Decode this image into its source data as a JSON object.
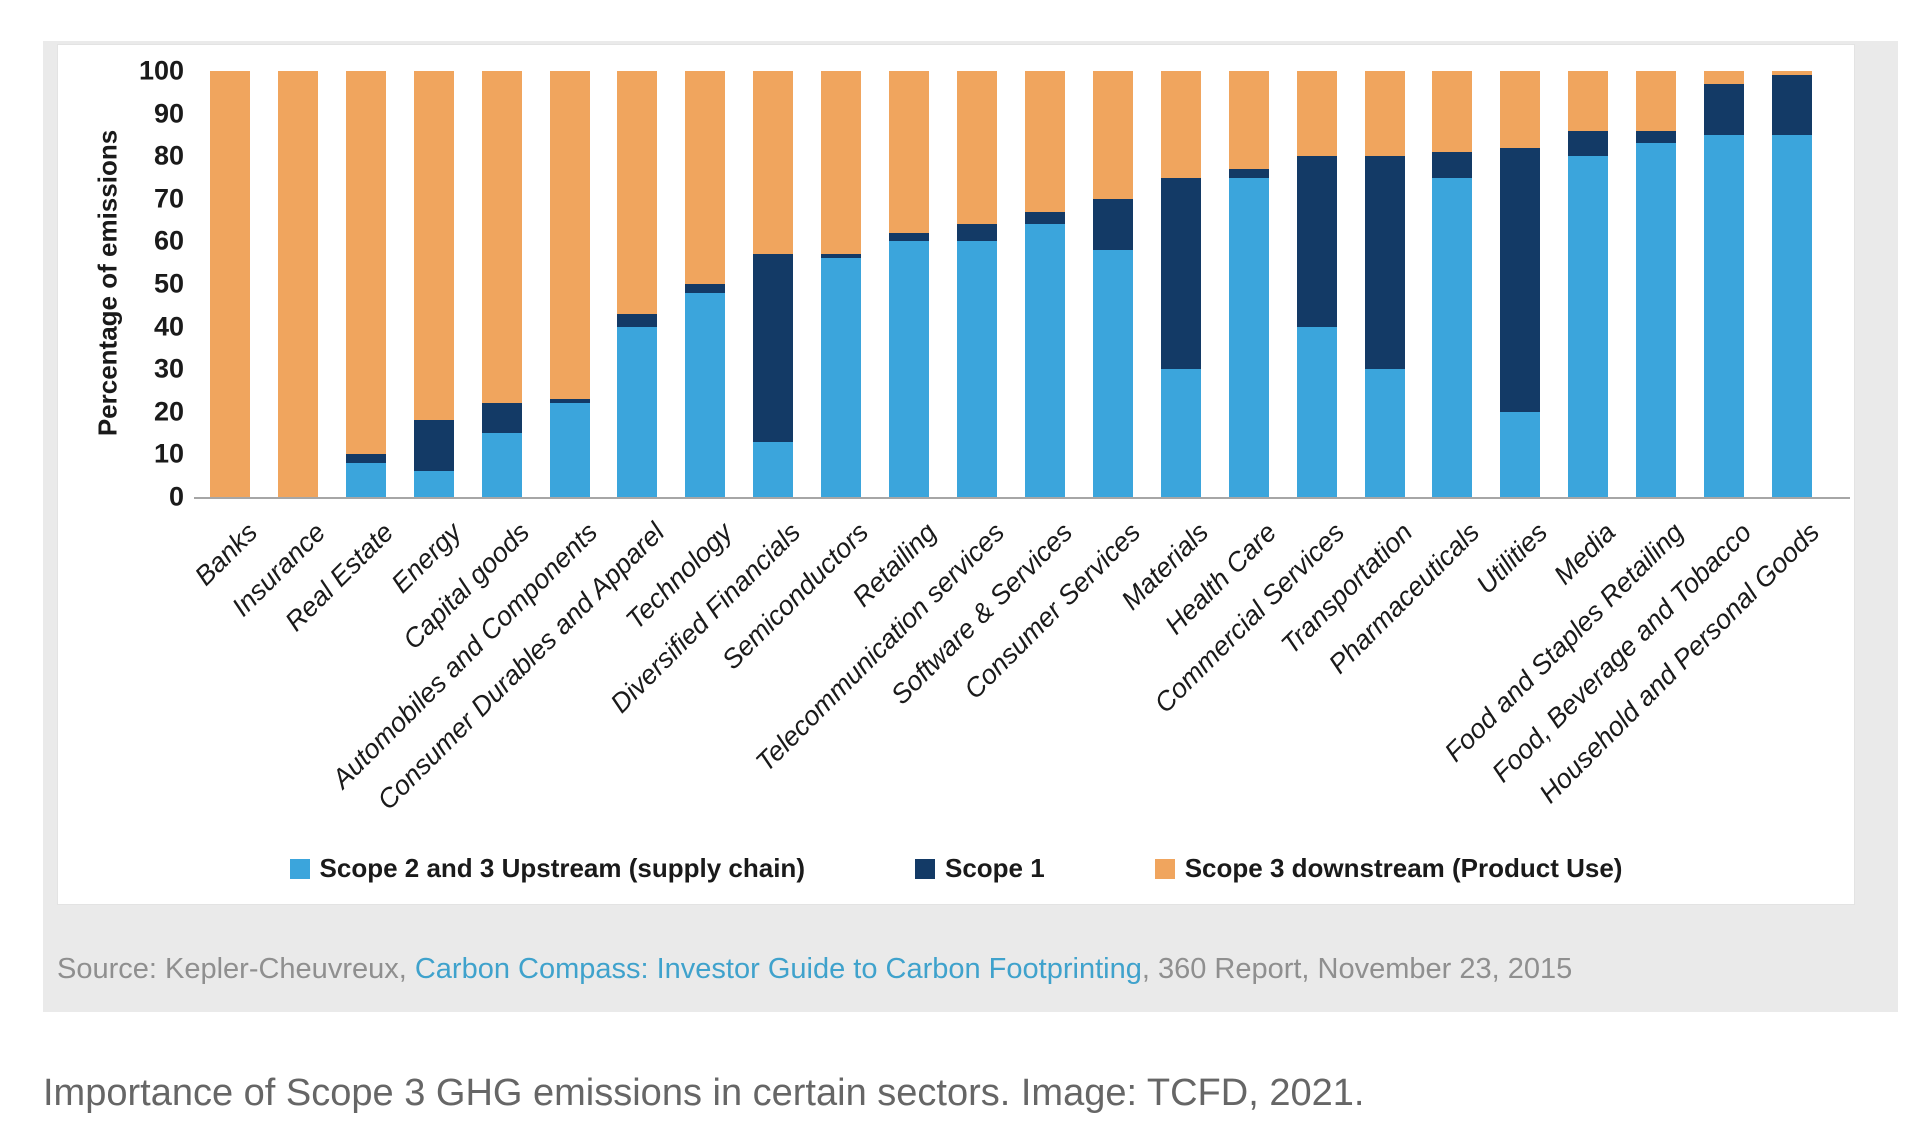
{
  "chart_data": {
    "type": "bar",
    "stacked": true,
    "title": "",
    "xlabel": "",
    "ylabel": "Percentage of emissions",
    "ylim": [
      0,
      100
    ],
    "yticks": [
      0,
      10,
      20,
      30,
      40,
      50,
      60,
      70,
      80,
      90,
      100
    ],
    "grid": false,
    "legend_position": "bottom",
    "categories": [
      "Banks",
      "Insurance",
      "Real Estate",
      "Energy",
      "Capital goods",
      "Automobiles and Components",
      "Consumer Durables and Apparel",
      "Technology",
      "Diversified Financials",
      "Semiconductors",
      "Retailing",
      "Telecommunication services",
      "Software & Services",
      "Consumer Services",
      "Materials",
      "Health Care",
      "Commercial Services",
      "Transportation",
      "Pharmaceuticals",
      "Utilities",
      "Media",
      "Food and Staples Retailing",
      "Food, Beverage and Tobacco",
      "Household and Personal Goods"
    ],
    "series": [
      {
        "name": "Scope 2 and 3 Upstream (supply chain)",
        "color": "#3BA5DC",
        "values": [
          0,
          0,
          8,
          6,
          15,
          22,
          40,
          48,
          13,
          56,
          60,
          60,
          64,
          58,
          30,
          75,
          40,
          30,
          75,
          20,
          80,
          83,
          85,
          85
        ]
      },
      {
        "name": "Scope 1",
        "color": "#133A66",
        "values": [
          0,
          0,
          2,
          12,
          7,
          1,
          3,
          2,
          44,
          1,
          2,
          4,
          3,
          12,
          45,
          2,
          40,
          50,
          6,
          62,
          6,
          3,
          12,
          14
        ]
      },
      {
        "name": "Scope 3 downstream (Product Use)",
        "color": "#F0A55E",
        "values": [
          100,
          100,
          90,
          82,
          78,
          77,
          57,
          50,
          43,
          43,
          38,
          36,
          33,
          30,
          25,
          23,
          20,
          20,
          19,
          18,
          14,
          14,
          3,
          1
        ]
      }
    ]
  },
  "source": {
    "prefix": "Source: Kepler-Cheuvreux, ",
    "link_text": "Carbon Compass: Investor Guide to Carbon Footprinting",
    "suffix": ", 360 Report, November 23, 2015"
  },
  "caption": {
    "text": "Importance of Scope 3 GHG emissions in certain sectors. Image: TCFD, 2021."
  },
  "colors": {
    "frame_bg": "#EAEAEA",
    "panel_bg": "#FFFFFF",
    "axis_line": "#A6A6A6",
    "axis_text": "#1A1A1A",
    "source_text": "#8F8F8F",
    "link_text": "#3FA2CC",
    "caption_text": "#666666"
  }
}
